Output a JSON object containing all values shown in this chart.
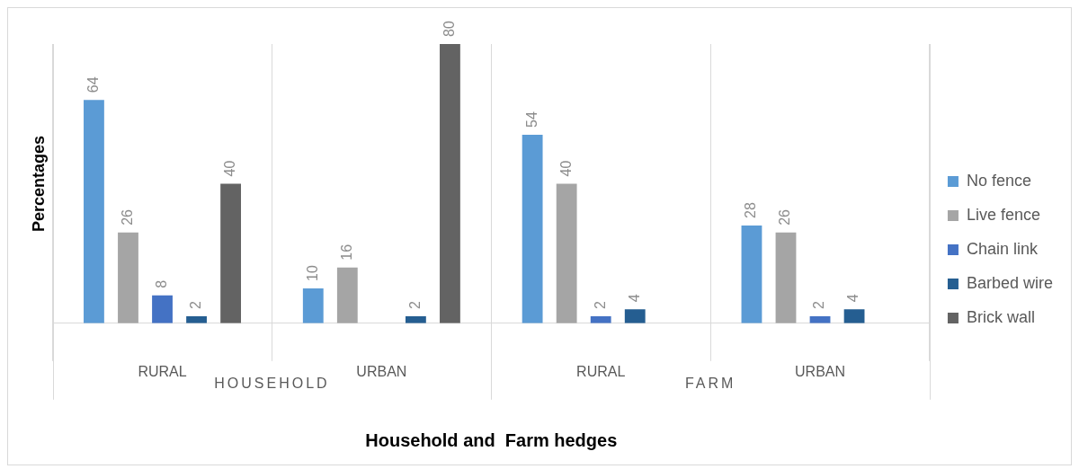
{
  "chart_data": {
    "type": "bar",
    "xlabel": "Household and  Farm hedges",
    "ylabel": "Percentages",
    "categories": [
      "RURAL",
      "URBAN",
      "RURAL",
      "URBAN"
    ],
    "annotations": [
      "HOUSEHOLD",
      "FARM"
    ],
    "series": [
      {
        "name": "No fence",
        "color": "#5b9bd5",
        "values": [
          64,
          10,
          54,
          28
        ]
      },
      {
        "name": "Live fence",
        "color": "#a5a5a5",
        "values": [
          26,
          16,
          40,
          26
        ]
      },
      {
        "name": "Chain link",
        "color": "#4472c4",
        "values": [
          8,
          null,
          2,
          2
        ]
      },
      {
        "name": "Barbed wire",
        "color": "#255e91",
        "values": [
          2,
          2,
          4,
          4
        ]
      },
      {
        "name": "Brick wall",
        "color": "#636363",
        "values": [
          40,
          80,
          null,
          null
        ]
      }
    ],
    "data_labels": true,
    "legend": "right",
    "grid": "x"
  }
}
